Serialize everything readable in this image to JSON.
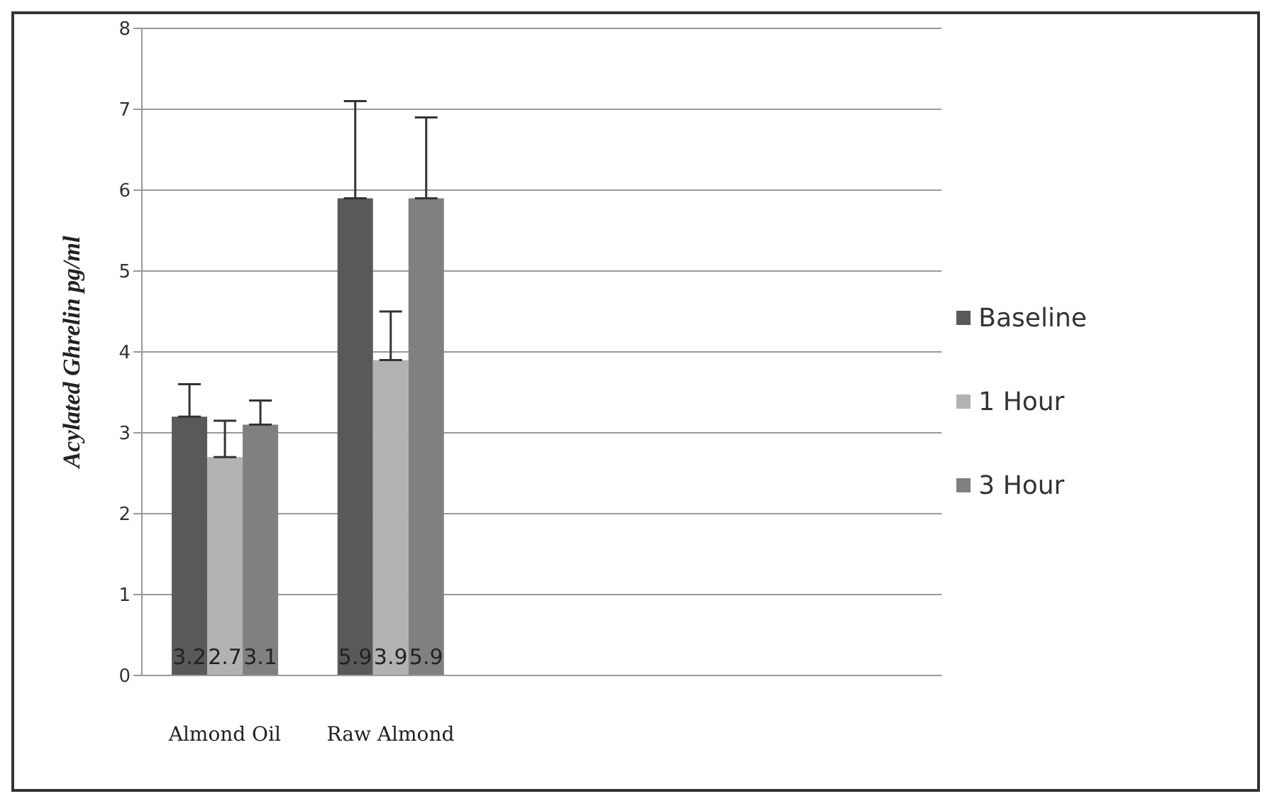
{
  "chart_data": {
    "type": "bar",
    "ylabel": "Acylated Ghrelin pg/ml",
    "categories": [
      "Almond Oil",
      "Raw Almond"
    ],
    "series": [
      {
        "name": "Baseline",
        "color": "#595959",
        "values": [
          3.2,
          5.9
        ],
        "errors": [
          [
            3.2,
            3.6
          ],
          [
            5.9,
            7.1
          ]
        ]
      },
      {
        "name": "1 Hour",
        "color": "#b2b2b2",
        "values": [
          2.7,
          3.9
        ],
        "errors": [
          [
            2.7,
            3.15
          ],
          [
            3.9,
            4.5
          ]
        ]
      },
      {
        "name": "3 Hour",
        "color": "#808080",
        "values": [
          3.1,
          5.9
        ],
        "errors": [
          [
            3.1,
            3.4
          ],
          [
            5.9,
            6.9
          ]
        ]
      }
    ],
    "ylim": [
      0,
      8
    ],
    "yticks": [
      0,
      1,
      2,
      3,
      4,
      5,
      6,
      7,
      8
    ],
    "grid": "y",
    "legend": "right",
    "data_labels": true
  }
}
